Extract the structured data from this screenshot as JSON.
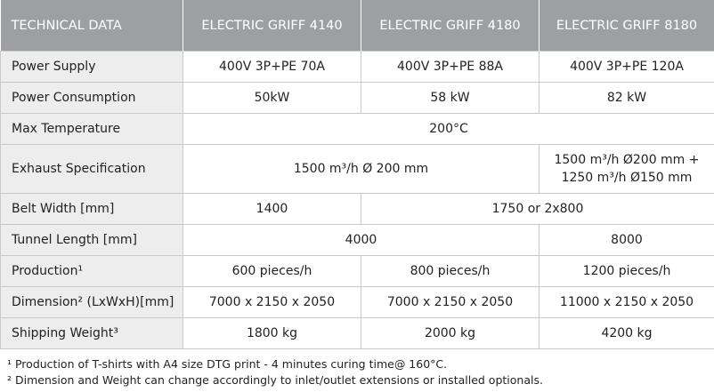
{
  "table": {
    "header": [
      "TECHNICAL DATA",
      "ELECTRIC GRIFF 4140",
      "ELECTRIC GRIFF 4180",
      "ELECTRIC GRIFF 8180"
    ],
    "rows": [
      [
        "Power Supply",
        "400V 3P+PE 70A",
        "400V 3P+PE 88A",
        "400V 3P+PE 120A"
      ],
      [
        "Power Consumption",
        "50kW",
        "58 kW",
        "82 kW"
      ],
      [
        "Max Temperature",
        "200°C"
      ],
      [
        "Exhaust Specification",
        "1500 m³/h Ø 200 mm",
        [
          "1500 m³/h  Ø200 mm +",
          "1250 m³/h  Ø150 mm"
        ]
      ],
      [
        "Belt Width [mm]",
        "1400",
        "1750 or 2x800"
      ],
      [
        "Tunnel Length [mm]",
        "4000",
        "8000"
      ],
      [
        "Production¹",
        "600 pieces/h",
        "800 pieces/h",
        "1200 pieces/h"
      ],
      [
        "Dimension² (LxWxH)[mm]",
        "7000 x 2150 x 2050",
        "7000 x 2150 x 2050",
        "11000 x 2150 x 2050"
      ],
      [
        "Shipping Weight³",
        "1800 kg",
        "2000 kg",
        "4200 kg"
      ]
    ]
  },
  "footnotes": [
    "¹ Production of T-shirts with A4 size DTG print - 4 minutes curing time@ 160°C.",
    "² Dimension and Weight can change accordingly to inlet/outlet extensions or installed optionals."
  ]
}
